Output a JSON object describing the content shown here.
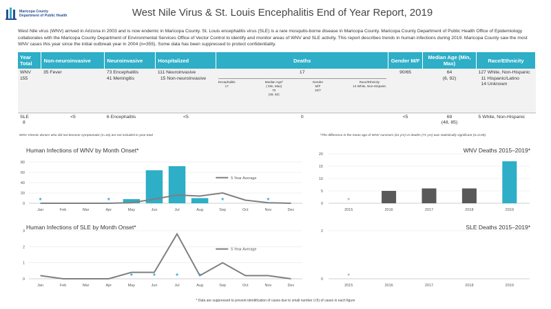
{
  "header": {
    "logo_line1": "Maricopa County",
    "logo_line2": "Department of Public Health",
    "title": "West Nile Virus & St. Louis Encephalitis End of Year Report, 2019"
  },
  "intro": "West Nile virus (WNV) arrived in Arizona in 2003 and is now endemic in Maricopa County. St. Louis encephalitis virus (SLE) is a rare mosquito-borne disease in Maricopa County. Maricopa County Department of Public Health Office of Epidemiology collaborates with the Maricopa County Department of Environmental Services Office of Vector Control to identify and monitor areas of WNV and SLE activity. This report describes trends in human infections during 2019. Maricopa County saw the most WNV cases this year since the initial outbreak year in 2004 (n=355). Some data has been suppressed to protect confidentiality.",
  "table": {
    "headers": [
      "Year Total",
      "Non-neuroinvasive",
      "Neuroinvasive",
      "Hospitalized",
      "Deaths",
      "Gender M/F",
      "Median Age (Min, Max)",
      "Race/Ethnicity"
    ],
    "wnv": {
      "year_total": [
        "WNV",
        "155"
      ],
      "non_neuro": "35 Fever",
      "neuro": [
        "73 Encephalitis",
        "41 Meningitis"
      ],
      "hospitalized": [
        "111 Neuroinvasive",
        "15 Non-neuroinvasive"
      ],
      "deaths": "17",
      "deaths_sub": [
        [
          "Encephalitis",
          "17"
        ],
        [
          "Median Age²",
          "( Min, Max)",
          "70",
          "(48, 92)"
        ],
        [
          "Gender",
          "M/F",
          "10/7"
        ],
        [
          "Race/Ethnicity",
          "14 White, Non-Hispanic"
        ]
      ],
      "gender": "90/65",
      "median_age": [
        "64",
        "(6, 92)"
      ],
      "race": [
        "127 White, Non-Hispanic",
        "11 Hispanic/Latino",
        "14 Unknown"
      ]
    },
    "sle": {
      "year_total": [
        "SLE",
        "8"
      ],
      "non_neuro": "<5",
      "neuro": "6 Encephalitis",
      "hospitalized": "<5",
      "deaths": "0",
      "gender": "<5",
      "median_age": [
        "69",
        "(48, 85)"
      ],
      "race": "5 White, Non-Hispanic"
    }
  },
  "notes": {
    "left": "WNV Viremic donors who did not become symptomatic (n=16) are not included in year total",
    "right": "²The difference in the mean age of WNV survivors (61 yrs) vs deaths (71 yrs) was statistically significant (α=0.05).",
    "footnote": "* Data are suppressed to prevent identification of cases due to small number (<5) of cases in each figure"
  },
  "colors": {
    "accent": "#2eaec7",
    "bar": "#2eaec7",
    "deaths_bar": "#595959",
    "line": "#7f7f7f",
    "text": "#333333"
  },
  "chart_data": [
    {
      "type": "bar",
      "title": "Human Infections of WNV by Month Onset*",
      "categories": [
        "Jan",
        "Feb",
        "Mar",
        "Apr",
        "May",
        "Jun",
        "Jul",
        "Aug",
        "Sep",
        "Oct",
        "Nov",
        "Dec"
      ],
      "series": [
        {
          "values": [
            null,
            0,
            0,
            null,
            8,
            64,
            72,
            10,
            null,
            0,
            null,
            0
          ]
        },
        {
          "name": "5 Year Average",
          "type": "line",
          "values": [
            0,
            0,
            0,
            0,
            1,
            8,
            16,
            14,
            20,
            6,
            1,
            0
          ]
        }
      ],
      "suppressed_markers": [
        "Jan",
        "Apr",
        "Sep",
        "Nov"
      ],
      "ylim": [
        0,
        80
      ],
      "yticks": [
        0,
        20,
        40,
        60,
        80
      ],
      "legend": "right"
    },
    {
      "type": "line",
      "title": "Human Infections of SLE by Month Onset*",
      "categories": [
        "Jan",
        "Feb",
        "Mar",
        "Apr",
        "May",
        "Jun",
        "Jul",
        "Aug",
        "Sep",
        "Oct",
        "Nov",
        "Dec"
      ],
      "series": [
        {
          "name": "5 Year Average",
          "values": [
            0.2,
            0,
            0,
            0,
            0.4,
            0.4,
            2.8,
            0.2,
            1.0,
            0.2,
            0.2,
            0
          ]
        }
      ],
      "suppressed_markers": [
        "May",
        "Jun",
        "Jul",
        "Aug"
      ],
      "ylim": [
        0,
        3
      ],
      "yticks": [
        0,
        1,
        2,
        3
      ],
      "legend": "right"
    },
    {
      "type": "bar",
      "title": "WNV Deaths 2015–2019*",
      "categories": [
        "2015",
        "2016",
        "2017",
        "2018",
        "2019"
      ],
      "values": [
        null,
        5,
        6,
        6,
        17
      ],
      "suppressed_markers": [
        "2015"
      ],
      "ylim": [
        0,
        20
      ],
      "yticks": [
        0,
        5,
        10,
        15,
        20
      ]
    },
    {
      "type": "bar",
      "title": "SLE Deaths 2015–2019*",
      "categories": [
        "2015",
        "2016",
        "2017",
        "2018",
        "2019"
      ],
      "values": [
        null,
        0,
        0,
        0,
        0
      ],
      "suppressed_markers": [
        "2015"
      ],
      "ylim": [
        0,
        2
      ],
      "yticks": [
        0,
        2
      ]
    }
  ]
}
